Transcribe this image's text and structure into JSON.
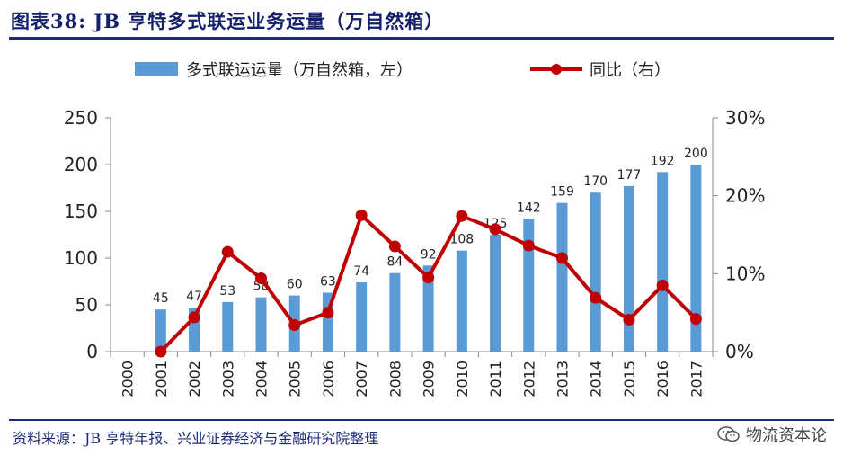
{
  "header": {
    "title": "图表38: JB 亨特多式联运业务运量（万自然箱）"
  },
  "footer": {
    "source": "资料来源：JB 亨特年报、兴业证券经济与金融研究院整理",
    "watermark": "物流资本论",
    "watermark_icon": "wechat-icon"
  },
  "colors": {
    "bar": "#5b9bd5",
    "line": "#c00000",
    "title": "#14206b"
  },
  "chart_data": {
    "type": "bar",
    "categories": [
      "2000",
      "2001",
      "2002",
      "2003",
      "2004",
      "2005",
      "2006",
      "2007",
      "2008",
      "2009",
      "2010",
      "2011",
      "2012",
      "2013",
      "2014",
      "2015",
      "2016",
      "2017"
    ],
    "series": [
      {
        "name": "多式联运运量（万自然箱，左）",
        "type": "bar",
        "axis": "left",
        "values": [
          null,
          45,
          47,
          53,
          58,
          60,
          63,
          74,
          84,
          92,
          108,
          125,
          142,
          159,
          170,
          177,
          192,
          200
        ],
        "labels": [
          "",
          "45",
          "47",
          "53",
          "58",
          "60",
          "63",
          "74",
          "84",
          "92",
          "108",
          "125",
          "142",
          "159",
          "170",
          "177",
          "192",
          "200"
        ]
      },
      {
        "name": "同比（右）",
        "type": "line",
        "axis": "right",
        "values": [
          null,
          0.0,
          4.4,
          12.8,
          9.4,
          3.4,
          5.0,
          17.5,
          13.5,
          9.5,
          17.4,
          15.7,
          13.6,
          12.0,
          6.9,
          4.1,
          8.5,
          4.2
        ]
      }
    ],
    "y_left": {
      "lim": [
        0,
        250
      ],
      "ticks": [
        "0",
        "50",
        "100",
        "150",
        "200",
        "250"
      ]
    },
    "y_right": {
      "lim": [
        0,
        30
      ],
      "ticks": [
        "0%",
        "10%",
        "20%",
        "30%"
      ]
    },
    "legend": "top",
    "grid": false
  }
}
